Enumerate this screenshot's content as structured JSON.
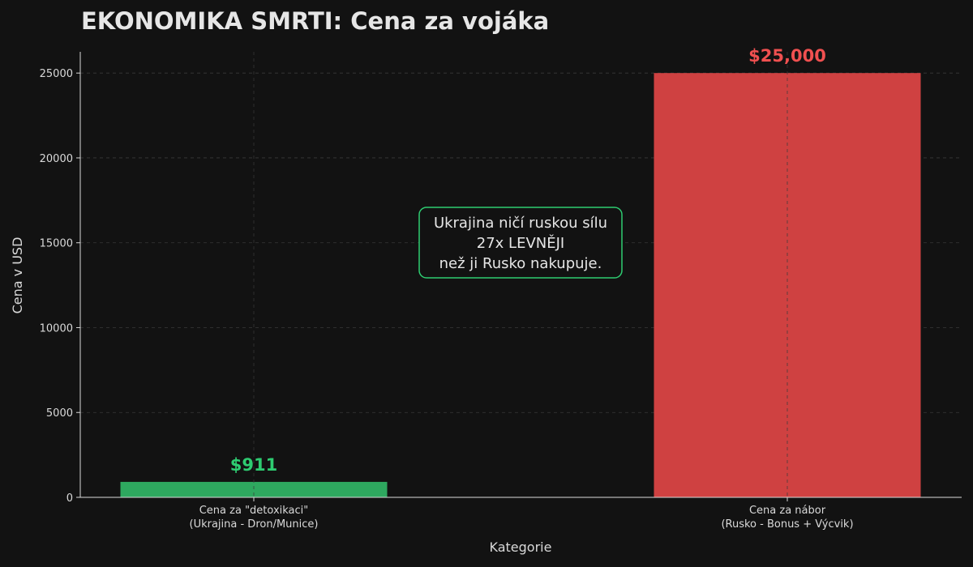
{
  "colors": {
    "background": "#121212",
    "title": "#e6e6e6",
    "axis": "#d9d9d9",
    "grid": "#3a3a3a",
    "green": "#2ea85f",
    "green_label": "#2ecc71",
    "red": "#cf4141",
    "red_label": "#f05050"
  },
  "chart_data": {
    "type": "bar",
    "title": "EKONOMIKA SMRTI: Cena za vojáka",
    "xlabel": "Kategorie",
    "ylabel": "Cena v USD",
    "ylim": [
      0,
      26250
    ],
    "yticks": [
      0,
      5000,
      10000,
      15000,
      20000,
      25000
    ],
    "grid": true,
    "categories": [
      [
        "Cena za \"detoxikaci\"",
        "(Ukrajina - Dron/Munice)"
      ],
      [
        "Cena za nábor",
        "(Rusko - Bonus + Výcvik)"
      ]
    ],
    "values": [
      911,
      25000
    ],
    "value_labels": [
      "$911",
      "$25,000"
    ],
    "bar_colors": [
      "#2ea85f",
      "#cf4141"
    ],
    "label_colors": [
      "#2ecc71",
      "#f05050"
    ],
    "annotation": {
      "lines": [
        "Ukrajina ničí ruskou sílu",
        "27x LEVNĚJI",
        "než ji Rusko nakupuje."
      ],
      "border_color": "#2ecc71"
    }
  }
}
